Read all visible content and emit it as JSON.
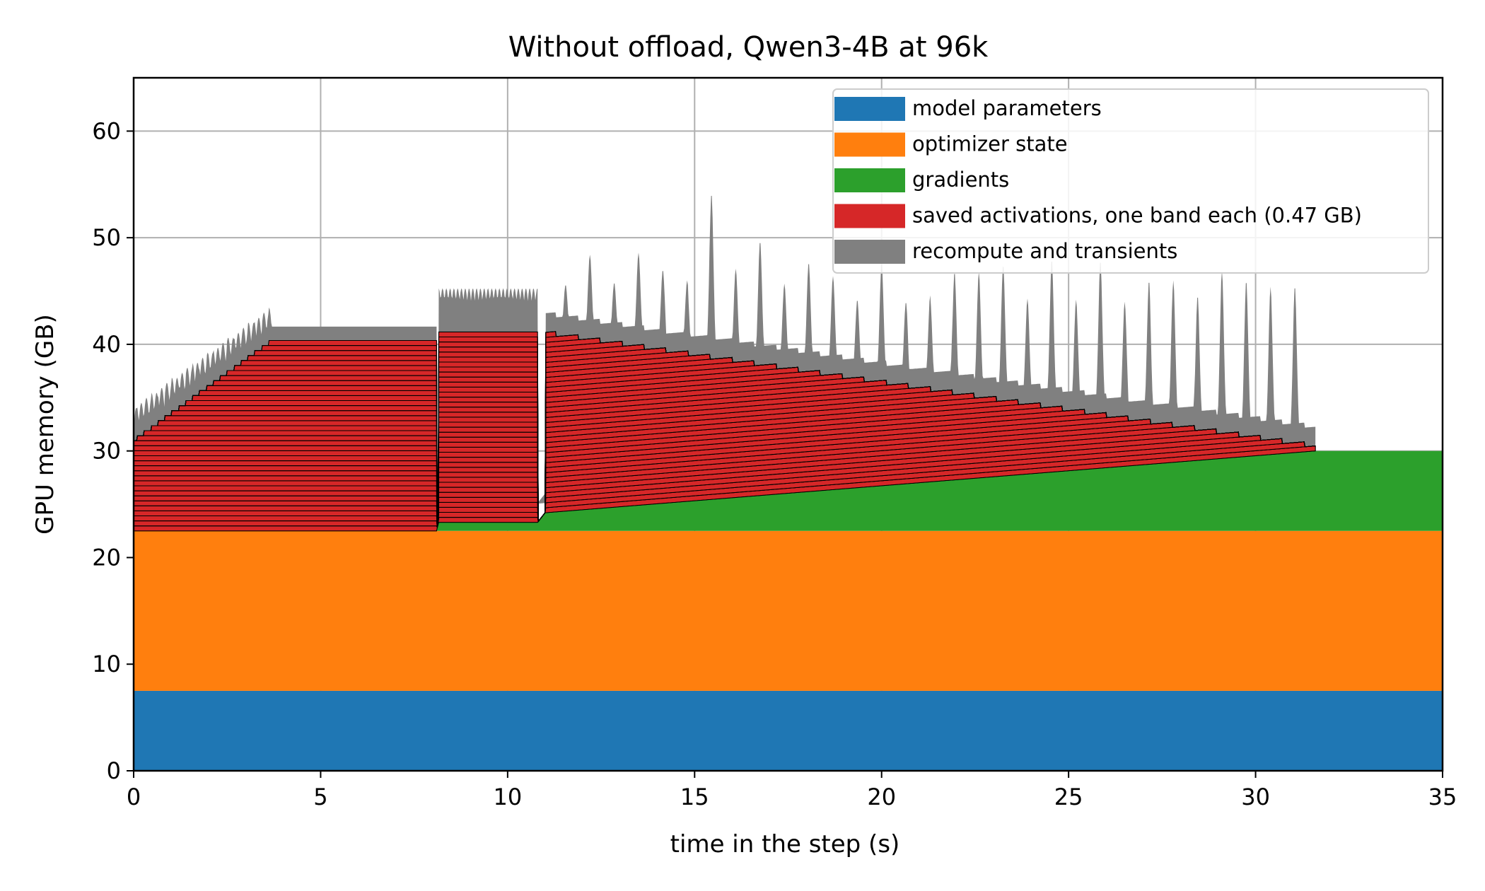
{
  "chart_data": {
    "type": "area",
    "title": "Without offload, Qwen3-4B at 96k",
    "xlabel": "time in the step (s)",
    "ylabel": "GPU memory (GB)",
    "xlim": [
      0,
      35
    ],
    "ylim": [
      0,
      65
    ],
    "xticks": [
      0,
      5,
      10,
      15,
      20,
      25,
      30,
      35
    ],
    "yticks": [
      0,
      10,
      20,
      30,
      40,
      50,
      60
    ],
    "grid": true,
    "legend_position": "top-right",
    "series": [
      {
        "name": "model parameters",
        "color": "#1f77b4",
        "constant": 7.5,
        "span": [
          0,
          35
        ]
      },
      {
        "name": "optimizer state",
        "color": "#ff7f0e",
        "constant": 15.0,
        "span": [
          0,
          35
        ]
      },
      {
        "name": "gradients",
        "color": "#2ca02c",
        "x": [
          0,
          8.1,
          8.15,
          10.8,
          11.0,
          31.6,
          35
        ],
        "values": [
          0,
          0,
          0.8,
          0.8,
          1.7,
          7.5,
          7.5
        ]
      },
      {
        "name": "saved activations, one band each (0.47 GB)",
        "color": "#d62728",
        "band_size": 0.47,
        "phases": [
          {
            "phase": "forward",
            "x": [
              0,
              3.7
            ],
            "bands": [
              18,
              38
            ]
          },
          {
            "phase": "hold",
            "x": [
              3.7,
              8.1
            ],
            "bands": [
              38,
              38
            ]
          },
          {
            "phase": "recompute",
            "x": [
              8.15,
              10.8
            ],
            "bands": [
              38,
              38
            ]
          },
          {
            "phase": "backward",
            "x": [
              11.0,
              31.6
            ],
            "bands": [
              36,
              1
            ]
          }
        ]
      },
      {
        "name": "recompute and transients",
        "color": "#808080",
        "baseline_overhead": 1.3,
        "spike_times": [
          11.55,
          12.2,
          12.85,
          13.5,
          14.15,
          14.8,
          15.45,
          16.1,
          16.75,
          17.4,
          18.05,
          18.7,
          19.35,
          20.0,
          20.65,
          21.3,
          21.95,
          22.6,
          23.25,
          23.9,
          24.55,
          25.2,
          25.85,
          26.5,
          27.15,
          27.8,
          28.45,
          29.1,
          29.75,
          30.4,
          31.05
        ],
        "spike_peaks": [
          45.6,
          48.4,
          45.8,
          48.6,
          47.0,
          46.0,
          54.2,
          47.1,
          49.7,
          45.7,
          47.7,
          46.4,
          44.2,
          47.6,
          44.0,
          44.6,
          46.8,
          46.8,
          47.5,
          44.3,
          48.0,
          44.2,
          47.9,
          44.0,
          46.0,
          46.0,
          44.6,
          46.9,
          46.0,
          45.4,
          45.5
        ]
      }
    ]
  }
}
